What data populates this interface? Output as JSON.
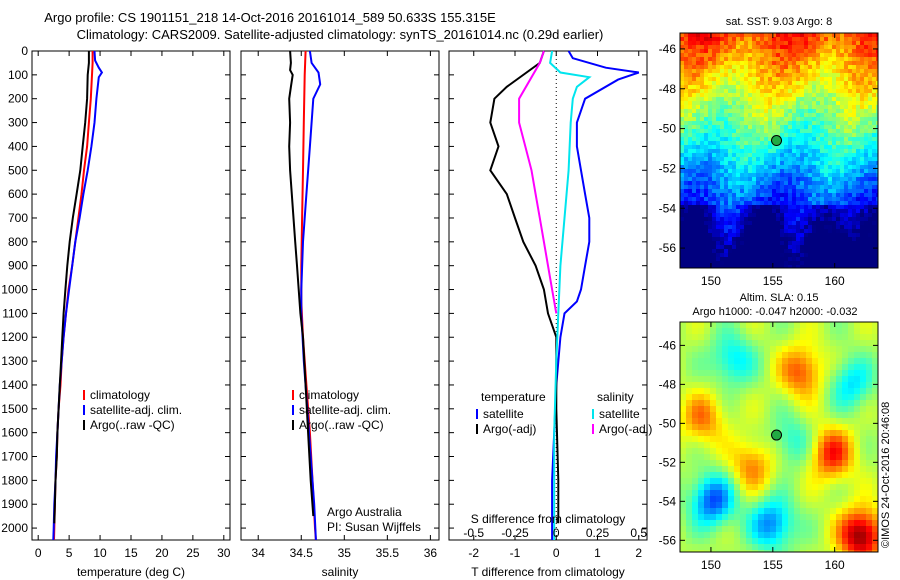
{
  "header": {
    "title_line1": "Argo profile: CS 1901151_218 14-Oct-2016 20161014_589 50.633S 155.315E",
    "title_line2": "Climatology: CARS2009. Satellite-adjusted climatology: synTS_20161014.nc (0.29d earlier)"
  },
  "footer": {
    "text": "©IMOS 24-Oct-2016 20:46:08"
  },
  "colors": {
    "climatology": "#ff0000",
    "satellite": "#0000ff",
    "argo": "#000000",
    "sat_s": "#00e5ee",
    "argo_s": "#ff00ff"
  },
  "chart_data": [
    {
      "type": "line",
      "xlabel": "temperature (deg C)",
      "ylim": [
        2050,
        0
      ],
      "xlim": [
        -1,
        31
      ],
      "xticks": [
        0,
        5,
        10,
        15,
        20,
        25,
        30
      ],
      "yticks": [
        0,
        100,
        200,
        300,
        400,
        500,
        600,
        700,
        800,
        900,
        1000,
        1100,
        1200,
        1300,
        1400,
        1500,
        1600,
        1700,
        1800,
        1900,
        2000
      ],
      "legend": [
        "climatology",
        "satellite-adj. clim.",
        "Argo(..raw -QC)"
      ],
      "series": [
        {
          "name": "climatology",
          "color": "#ff0000",
          "points": [
            [
              8.8,
              0
            ],
            [
              8.8,
              50
            ],
            [
              8.7,
              100
            ],
            [
              8.5,
              200
            ],
            [
              8.2,
              300
            ],
            [
              7.9,
              400
            ],
            [
              7.4,
              500
            ],
            [
              7.0,
              600
            ],
            [
              6.5,
              700
            ],
            [
              6.0,
              800
            ],
            [
              5.5,
              900
            ],
            [
              4.9,
              1000
            ],
            [
              4.5,
              1100
            ],
            [
              4.1,
              1200
            ],
            [
              3.8,
              1300
            ],
            [
              3.6,
              1400
            ],
            [
              3.3,
              1500
            ],
            [
              3.1,
              1600
            ],
            [
              3.0,
              1700
            ],
            [
              2.8,
              1800
            ],
            [
              2.7,
              1900
            ],
            [
              2.6,
              2000
            ],
            [
              2.55,
              2050
            ]
          ]
        },
        {
          "name": "satellite-adj. clim.",
          "color": "#0000ff",
          "points": [
            [
              9.1,
              0
            ],
            [
              9.2,
              40
            ],
            [
              9.8,
              70
            ],
            [
              10.3,
              90
            ],
            [
              9.8,
              110
            ],
            [
              9.4,
              200
            ],
            [
              9.1,
              300
            ],
            [
              8.6,
              400
            ],
            [
              8.0,
              500
            ],
            [
              7.3,
              600
            ],
            [
              6.7,
              700
            ],
            [
              6.0,
              800
            ],
            [
              5.5,
              900
            ],
            [
              5.0,
              1000
            ],
            [
              4.5,
              1100
            ],
            [
              4.1,
              1200
            ],
            [
              3.8,
              1300
            ],
            [
              3.5,
              1400
            ],
            [
              3.3,
              1500
            ],
            [
              3.1,
              1600
            ],
            [
              2.9,
              1700
            ],
            [
              2.8,
              1800
            ],
            [
              2.6,
              1900
            ],
            [
              2.5,
              2000
            ],
            [
              2.45,
              2050
            ]
          ]
        },
        {
          "name": "Argo(..raw -QC)",
          "color": "#000000",
          "points": [
            [
              8.2,
              0
            ],
            [
              8.2,
              50
            ],
            [
              8.0,
              100
            ],
            [
              7.9,
              200
            ],
            [
              7.6,
              300
            ],
            [
              7.2,
              400
            ],
            [
              6.8,
              500
            ],
            [
              6.2,
              600
            ],
            [
              5.6,
              700
            ],
            [
              5.1,
              800
            ],
            [
              4.7,
              900
            ],
            [
              4.4,
              1000
            ],
            [
              4.1,
              1100
            ],
            [
              3.9,
              1200
            ],
            [
              3.7,
              1300
            ],
            [
              3.5,
              1400
            ],
            [
              3.3,
              1500
            ],
            [
              3.1,
              1600
            ],
            [
              3.0,
              1700
            ],
            [
              2.8,
              1800
            ],
            [
              2.7,
              1900
            ],
            [
              2.6,
              1980
            ]
          ]
        }
      ]
    },
    {
      "type": "line",
      "xlabel": "salinity",
      "ylim": [
        2050,
        0
      ],
      "xlim": [
        33.8,
        36.1
      ],
      "xticks": [
        34,
        34.5,
        35,
        35.5,
        36
      ],
      "legend": [
        "climatology",
        "satellite-adj. clim.",
        "Argo(..raw -QC)"
      ],
      "annotation": [
        "Argo Australia",
        "PI: Susan Wijffels"
      ],
      "series": [
        {
          "name": "climatology",
          "color": "#ff0000",
          "points": [
            [
              34.55,
              0
            ],
            [
              34.54,
              100
            ],
            [
              34.53,
              300
            ],
            [
              34.52,
              500
            ],
            [
              34.51,
              700
            ],
            [
              34.5,
              900
            ],
            [
              34.5,
              1000
            ],
            [
              34.5,
              1050
            ],
            [
              34.52,
              1200
            ],
            [
              34.56,
              1400
            ],
            [
              34.6,
              1600
            ],
            [
              34.63,
              1800
            ],
            [
              34.66,
              2000
            ],
            [
              34.67,
              2050
            ]
          ]
        },
        {
          "name": "satellite-adj. clim.",
          "color": "#0000ff",
          "points": [
            [
              34.6,
              0
            ],
            [
              34.62,
              50
            ],
            [
              34.7,
              90
            ],
            [
              34.72,
              140
            ],
            [
              34.64,
              200
            ],
            [
              34.6,
              400
            ],
            [
              34.56,
              600
            ],
            [
              34.52,
              800
            ],
            [
              34.5,
              1000
            ],
            [
              34.5,
              1100
            ],
            [
              34.53,
              1300
            ],
            [
              34.57,
              1500
            ],
            [
              34.61,
              1700
            ],
            [
              34.65,
              1900
            ],
            [
              34.67,
              2050
            ]
          ]
        },
        {
          "name": "Argo(..raw -QC)",
          "color": "#000000",
          "points": [
            [
              34.37,
              0
            ],
            [
              34.38,
              50
            ],
            [
              34.37,
              80
            ],
            [
              34.4,
              100
            ],
            [
              34.38,
              150
            ],
            [
              34.36,
              200
            ],
            [
              34.37,
              300
            ],
            [
              34.36,
              400
            ],
            [
              34.37,
              500
            ],
            [
              34.39,
              600
            ],
            [
              34.41,
              700
            ],
            [
              34.43,
              800
            ],
            [
              34.45,
              900
            ],
            [
              34.47,
              1000
            ],
            [
              34.49,
              1100
            ],
            [
              34.52,
              1200
            ],
            [
              34.55,
              1400
            ],
            [
              34.58,
              1600
            ],
            [
              34.61,
              1800
            ],
            [
              34.64,
              1950
            ]
          ]
        }
      ]
    },
    {
      "type": "line",
      "xlabel": "T difference from climatology",
      "x2label": "S difference from climatology",
      "ylim": [
        2050,
        0
      ],
      "xlim": [
        -2.6,
        2.2
      ],
      "xticks": [
        -2,
        -1,
        0,
        1,
        2
      ],
      "x2ticks": [
        -0.5,
        -0.25,
        0,
        0.25,
        0.5
      ],
      "legend_groups": [
        {
          "title": "temperature",
          "items": [
            "satellite",
            "Argo(-adj)"
          ]
        },
        {
          "title": "salinity",
          "items": [
            "satellite",
            "Argo(-adj)"
          ]
        }
      ],
      "series": [
        {
          "name": "temperature satellite",
          "color": "#0000ff",
          "points": [
            [
              0.3,
              0
            ],
            [
              0.4,
              30
            ],
            [
              1.2,
              70
            ],
            [
              2.0,
              90
            ],
            [
              1.5,
              120
            ],
            [
              0.7,
              200
            ],
            [
              0.5,
              300
            ],
            [
              0.5,
              400
            ],
            [
              0.6,
              500
            ],
            [
              0.7,
              600
            ],
            [
              0.8,
              700
            ],
            [
              0.8,
              800
            ],
            [
              0.7,
              900
            ],
            [
              0.6,
              1000
            ],
            [
              0.5,
              1050
            ],
            [
              0.2,
              1100
            ],
            [
              0.1,
              1200
            ],
            [
              0,
              1400
            ],
            [
              -0.05,
              1600
            ],
            [
              -0.1,
              1800
            ],
            [
              -0.1,
              2050
            ]
          ]
        },
        {
          "name": "temperature Argo(-adj)",
          "color": "#000000",
          "points": [
            [
              -0.3,
              0
            ],
            [
              -0.4,
              50
            ],
            [
              -1.2,
              150
            ],
            [
              -1.5,
              200
            ],
            [
              -1.6,
              300
            ],
            [
              -1.4,
              400
            ],
            [
              -1.6,
              500
            ],
            [
              -1.2,
              600
            ],
            [
              -1.0,
              700
            ],
            [
              -0.8,
              800
            ],
            [
              -0.5,
              900
            ],
            [
              -0.3,
              1000
            ],
            [
              -0.2,
              1100
            ],
            [
              0,
              1200
            ],
            [
              0,
              1500
            ],
            [
              0.05,
              1800
            ],
            [
              0.05,
              1980
            ]
          ]
        },
        {
          "name": "salinity satellite",
          "color": "#00e5ee",
          "points": [
            [
              -0.1,
              0
            ],
            [
              -0.15,
              50
            ],
            [
              0.1,
              90
            ],
            [
              0.8,
              110
            ],
            [
              0.5,
              150
            ],
            [
              0.4,
              200
            ],
            [
              0.35,
              300
            ],
            [
              0.3,
              500
            ],
            [
              0.2,
              700
            ],
            [
              0.1,
              900
            ],
            [
              0.05,
              1100
            ],
            [
              0,
              1300
            ],
            [
              -0.05,
              1600
            ],
            [
              -0.05,
              2050
            ]
          ]
        },
        {
          "name": "salinity Argo(-adj)",
          "color": "#ff00ff",
          "points": [
            [
              -0.3,
              0
            ],
            [
              -0.4,
              50
            ],
            [
              -0.9,
              200
            ],
            [
              -0.9,
              300
            ],
            [
              -0.75,
              400
            ],
            [
              -0.6,
              500
            ],
            [
              -0.5,
              600
            ],
            [
              -0.4,
              700
            ],
            [
              -0.3,
              800
            ],
            [
              -0.2,
              900
            ],
            [
              -0.1,
              1000
            ],
            [
              0,
              1100
            ]
          ]
        }
      ]
    },
    {
      "type": "heatmap",
      "title": "sat. SST: 9.03 Argo: 8",
      "xticks": [
        150,
        155,
        160
      ],
      "yticks": [
        -46,
        -48,
        -50,
        -52,
        -54,
        -56
      ],
      "xlim": [
        147.5,
        163.5
      ],
      "ylim": [
        -57,
        -45.2
      ],
      "marker": {
        "lon": 155.3,
        "lat": -50.6
      }
    },
    {
      "type": "heatmap",
      "title_line1": "Altim. SLA: 0.15",
      "title_line2": "Argo h1000: -0.047 h2000: -0.032",
      "xticks": [
        150,
        155,
        160
      ],
      "yticks": [
        -46,
        -48,
        -50,
        -52,
        -54,
        -56
      ],
      "xlim": [
        147.5,
        163.5
      ],
      "ylim": [
        -56.6,
        -44.8
      ],
      "marker": {
        "lon": 155.3,
        "lat": -50.6
      }
    }
  ]
}
